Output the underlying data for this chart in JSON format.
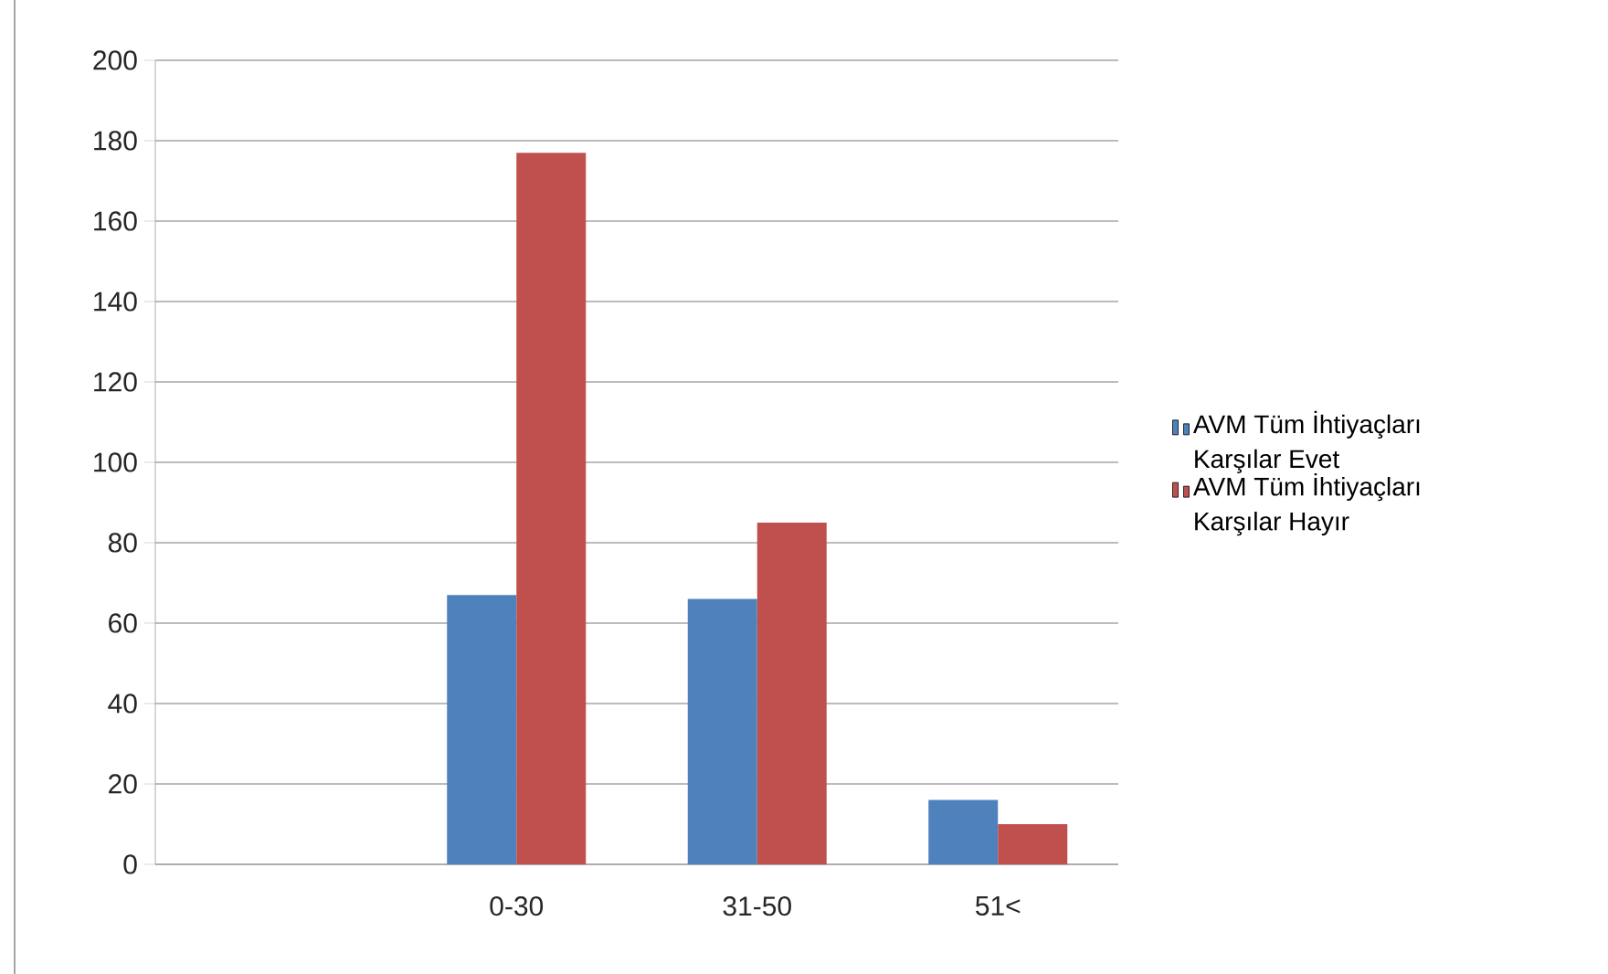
{
  "chart_data": {
    "type": "bar",
    "categories": [
      null,
      "0-30",
      "31-50",
      "51<"
    ],
    "series": [
      {
        "name": "AVM Tüm İhtiyaçları Karşılar Evet",
        "color": "#4f81bd",
        "values": [
          null,
          67,
          66,
          16
        ]
      },
      {
        "name": "AVM Tüm İhtiyaçları Karşılar Hayır",
        "color": "#c0504d",
        "values": [
          null,
          177,
          85,
          10
        ]
      }
    ],
    "ylim": [
      0,
      200
    ],
    "yticks": [
      0,
      20,
      40,
      60,
      80,
      100,
      120,
      140,
      160,
      180,
      200
    ],
    "grid": "y",
    "legend": "right"
  }
}
